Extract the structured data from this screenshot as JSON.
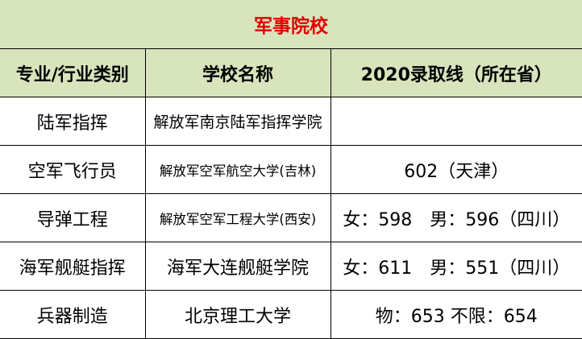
{
  "title": "军事院校",
  "colors": {
    "header_bg": "#d8e4bc",
    "title_text": "#e00000"
  },
  "headers": [
    "专业/行业类别",
    "学校名称",
    "2020录取线（所在省）"
  ],
  "rows": [
    {
      "major": "陆军指挥",
      "school": "解放军南京陆军指挥学院",
      "score": ""
    },
    {
      "major": "空军飞行员",
      "school": "解放军空军航空大学(吉林)",
      "score": "602（天津）"
    },
    {
      "major": "导弹工程",
      "school": "解放军空军工程大学(西安)",
      "score": "女：598　男：596（四川）"
    },
    {
      "major": "海军舰艇指挥",
      "school": "海军大连舰艇学院",
      "score": "女：611　男：551（四川）"
    },
    {
      "major": "兵器制造",
      "school": "北京理工大学",
      "score": "物：653  不限：654"
    }
  ]
}
